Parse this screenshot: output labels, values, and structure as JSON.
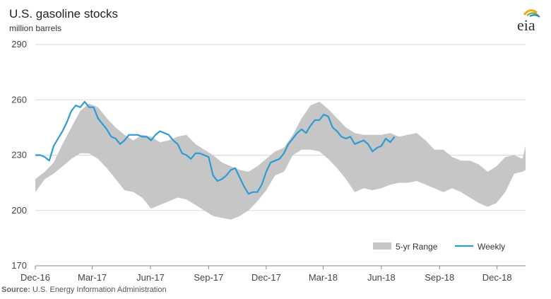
{
  "title": "U.S. gasoline stocks",
  "subtitle": "million barrels",
  "source_label": "Source:",
  "source_text": "U.S. Energy Information Administration",
  "logo_text": "eia",
  "colors": {
    "range_fill": "#c6c6c6",
    "weekly_line": "#2e9bd4",
    "grid": "#d9d9d9",
    "axis": "#888888",
    "logo_sun": "#f5a623",
    "logo_leaf": "#7ab648",
    "logo_blue": "#1f7fc0"
  },
  "chart_data": {
    "type": "area",
    "title": "U.S. gasoline stocks",
    "ylabel": "million barrels",
    "ylim": [
      170,
      290
    ],
    "yticks": [
      170,
      200,
      230,
      260,
      290
    ],
    "xlim": [
      "2016-12-01",
      "2019-01-15"
    ],
    "xticks": [
      {
        "date": "2016-12-01",
        "label": "Dec-16"
      },
      {
        "date": "2017-03-01",
        "label": "Mar-17"
      },
      {
        "date": "2017-06-01",
        "label": "Jun-17"
      },
      {
        "date": "2017-09-01",
        "label": "Sep-17"
      },
      {
        "date": "2017-12-01",
        "label": "Dec-17"
      },
      {
        "date": "2018-03-01",
        "label": "Mar-18"
      },
      {
        "date": "2018-06-01",
        "label": "Jun-18"
      },
      {
        "date": "2018-09-01",
        "label": "Sep-18"
      },
      {
        "date": "2018-12-01",
        "label": "Dec-18"
      }
    ],
    "grid": true,
    "legend_position": "bottom-right",
    "series": [
      {
        "name": "5-yr Range",
        "kind": "band",
        "points": [
          [
            "2016-12-01",
            210,
            217
          ],
          [
            "2016-12-16",
            217,
            221
          ],
          [
            "2016-12-30",
            220,
            226
          ],
          [
            "2017-01-13",
            224,
            236
          ],
          [
            "2017-01-27",
            228,
            245
          ],
          [
            "2017-02-10",
            231,
            254
          ],
          [
            "2017-02-24",
            231,
            258
          ],
          [
            "2017-03-10",
            228,
            256
          ],
          [
            "2017-03-24",
            223,
            250
          ],
          [
            "2017-04-07",
            217,
            245
          ],
          [
            "2017-04-21",
            211,
            241
          ],
          [
            "2017-05-05",
            210,
            238
          ],
          [
            "2017-05-19",
            207,
            241
          ],
          [
            "2017-06-02",
            201,
            240
          ],
          [
            "2017-06-16",
            203,
            237
          ],
          [
            "2017-06-30",
            205,
            238
          ],
          [
            "2017-07-14",
            207,
            240
          ],
          [
            "2017-07-28",
            206,
            241
          ],
          [
            "2017-08-11",
            203,
            236
          ],
          [
            "2017-08-25",
            200,
            233
          ],
          [
            "2017-09-08",
            197,
            230
          ],
          [
            "2017-09-22",
            196,
            226
          ],
          [
            "2017-10-06",
            195,
            224
          ],
          [
            "2017-10-20",
            197,
            222
          ],
          [
            "2017-11-03",
            200,
            221
          ],
          [
            "2017-11-17",
            205,
            224
          ],
          [
            "2017-12-01",
            211,
            228
          ],
          [
            "2017-12-15",
            219,
            232
          ],
          [
            "2017-12-29",
            221,
            234
          ],
          [
            "2018-01-12",
            230,
            241
          ],
          [
            "2018-01-26",
            233,
            250
          ],
          [
            "2018-02-09",
            233,
            257
          ],
          [
            "2018-02-23",
            232,
            259
          ],
          [
            "2018-03-09",
            228,
            255
          ],
          [
            "2018-03-23",
            223,
            250
          ],
          [
            "2018-04-06",
            217,
            245
          ],
          [
            "2018-04-20",
            210,
            242
          ],
          [
            "2018-05-04",
            212,
            241
          ],
          [
            "2018-05-18",
            211,
            241
          ],
          [
            "2018-06-01",
            212,
            241
          ],
          [
            "2018-06-15",
            214,
            242
          ],
          [
            "2018-06-29",
            215,
            240
          ],
          [
            "2018-07-13",
            215,
            241
          ],
          [
            "2018-07-27",
            216,
            242
          ],
          [
            "2018-08-10",
            214,
            238
          ],
          [
            "2018-08-24",
            212,
            233
          ],
          [
            "2018-09-07",
            210,
            233
          ],
          [
            "2018-09-21",
            212,
            229
          ],
          [
            "2018-10-05",
            210,
            227
          ],
          [
            "2018-10-19",
            207,
            227
          ],
          [
            "2018-11-02",
            204,
            225
          ],
          [
            "2018-11-16",
            202,
            221
          ],
          [
            "2018-11-30",
            204,
            224
          ],
          [
            "2018-12-14",
            210,
            229
          ],
          [
            "2018-12-28",
            220,
            230
          ],
          [
            "2019-01-10",
            221,
            228
          ],
          [
            "2019-01-15",
            222,
            235
          ]
        ]
      },
      {
        "name": "Weekly",
        "kind": "line",
        "points": [
          [
            "2016-12-01",
            230
          ],
          [
            "2016-12-09",
            230
          ],
          [
            "2016-12-16",
            229
          ],
          [
            "2016-12-23",
            227
          ],
          [
            "2016-12-30",
            235
          ],
          [
            "2017-01-06",
            239
          ],
          [
            "2017-01-13",
            243
          ],
          [
            "2017-01-20",
            248
          ],
          [
            "2017-01-27",
            254
          ],
          [
            "2017-02-03",
            257
          ],
          [
            "2017-02-10",
            256
          ],
          [
            "2017-02-17",
            259
          ],
          [
            "2017-02-24",
            256
          ],
          [
            "2017-03-03",
            256
          ],
          [
            "2017-03-10",
            250
          ],
          [
            "2017-03-17",
            247
          ],
          [
            "2017-03-24",
            244
          ],
          [
            "2017-03-31",
            240
          ],
          [
            "2017-04-07",
            239
          ],
          [
            "2017-04-14",
            236
          ],
          [
            "2017-04-21",
            238
          ],
          [
            "2017-04-28",
            241
          ],
          [
            "2017-05-05",
            241
          ],
          [
            "2017-05-12",
            241
          ],
          [
            "2017-05-19",
            240
          ],
          [
            "2017-05-26",
            240
          ],
          [
            "2017-06-02",
            238
          ],
          [
            "2017-06-09",
            241
          ],
          [
            "2017-06-16",
            243
          ],
          [
            "2017-06-23",
            242
          ],
          [
            "2017-06-30",
            241
          ],
          [
            "2017-07-07",
            238
          ],
          [
            "2017-07-14",
            236
          ],
          [
            "2017-07-21",
            231
          ],
          [
            "2017-07-28",
            230
          ],
          [
            "2017-08-04",
            228
          ],
          [
            "2017-08-11",
            231
          ],
          [
            "2017-08-18",
            231
          ],
          [
            "2017-08-25",
            230
          ],
          [
            "2017-09-01",
            229
          ],
          [
            "2017-09-08",
            219
          ],
          [
            "2017-09-15",
            216
          ],
          [
            "2017-09-22",
            217
          ],
          [
            "2017-09-29",
            219
          ],
          [
            "2017-10-06",
            222
          ],
          [
            "2017-10-13",
            223
          ],
          [
            "2017-10-20",
            218
          ],
          [
            "2017-10-27",
            213
          ],
          [
            "2017-11-03",
            209
          ],
          [
            "2017-11-10",
            210
          ],
          [
            "2017-11-17",
            210
          ],
          [
            "2017-11-24",
            214
          ],
          [
            "2017-12-01",
            221
          ],
          [
            "2017-12-08",
            226
          ],
          [
            "2017-12-15",
            227
          ],
          [
            "2017-12-22",
            228
          ],
          [
            "2017-12-29",
            231
          ],
          [
            "2018-01-05",
            236
          ],
          [
            "2018-01-12",
            239
          ],
          [
            "2018-01-19",
            242
          ],
          [
            "2018-01-26",
            244
          ],
          [
            "2018-02-02",
            242
          ],
          [
            "2018-02-09",
            246
          ],
          [
            "2018-02-16",
            249
          ],
          [
            "2018-02-23",
            249
          ],
          [
            "2018-03-02",
            252
          ],
          [
            "2018-03-09",
            251
          ],
          [
            "2018-03-16",
            245
          ],
          [
            "2018-03-23",
            243
          ],
          [
            "2018-03-30",
            240
          ],
          [
            "2018-04-06",
            239
          ],
          [
            "2018-04-13",
            240
          ],
          [
            "2018-04-20",
            236
          ],
          [
            "2018-04-27",
            237
          ],
          [
            "2018-05-04",
            238
          ],
          [
            "2018-05-11",
            236
          ],
          [
            "2018-05-18",
            232
          ],
          [
            "2018-05-25",
            234
          ],
          [
            "2018-06-01",
            235
          ],
          [
            "2018-06-08",
            239
          ],
          [
            "2018-06-15",
            237
          ],
          [
            "2018-06-22",
            240
          ]
        ]
      }
    ]
  }
}
